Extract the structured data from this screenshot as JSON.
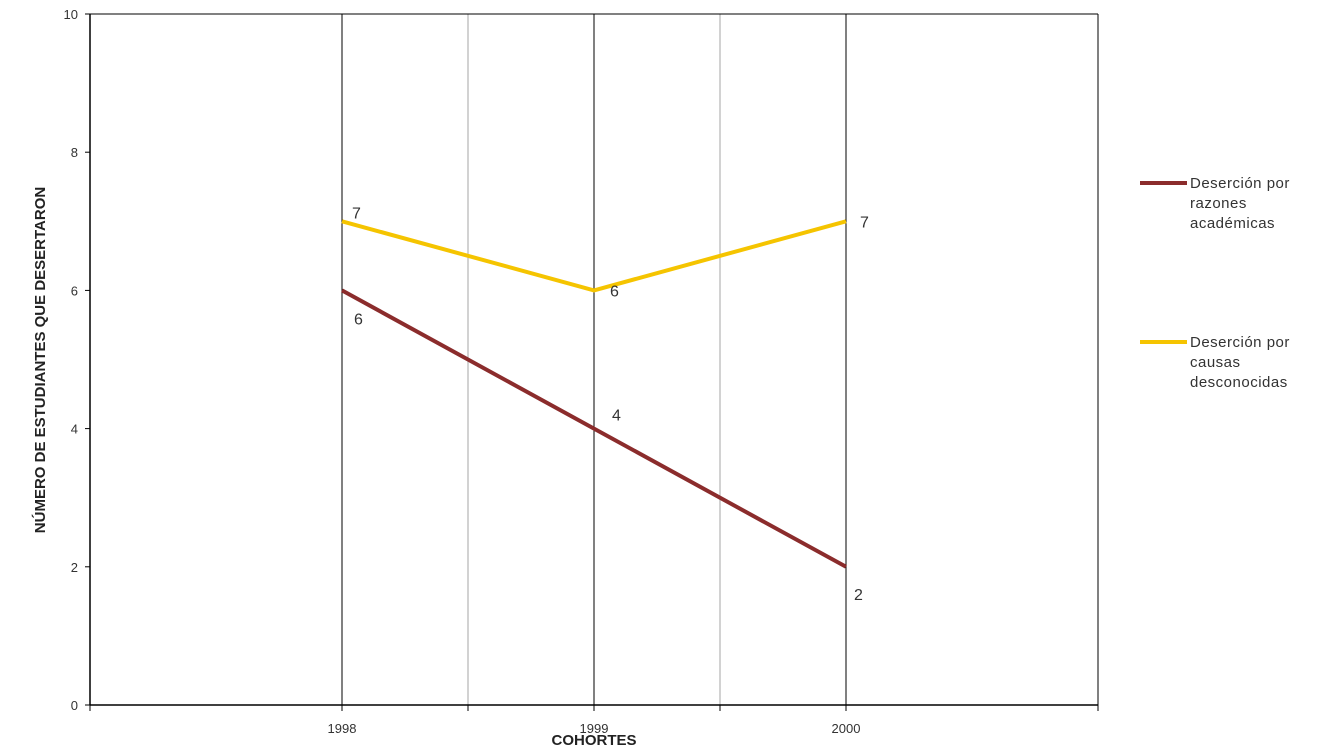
{
  "chart_data": {
    "type": "line",
    "title": "",
    "xlabel": "COHORTES",
    "ylabel": "NÚMERO DE ESTUDIANTES QUE DESERTARON",
    "categories": [
      "1998",
      "1999",
      "2000"
    ],
    "ylim": [
      0,
      10
    ],
    "yticks": [
      "0",
      "2",
      "4",
      "6",
      "8",
      "10"
    ],
    "grid": true,
    "legend_position": "right",
    "series": [
      {
        "name": "Deserción por razones académicas",
        "legend_lines": [
          "Deserción por",
          "razones",
          "académicas"
        ],
        "values": [
          6,
          4,
          2
        ],
        "color": "#8b2c2c"
      },
      {
        "name": "Deserción por causas desconocidas",
        "legend_lines": [
          "Deserción por",
          "causas",
          "desconocidas"
        ],
        "values": [
          7,
          6,
          7
        ],
        "color": "#f5c400"
      }
    ]
  }
}
